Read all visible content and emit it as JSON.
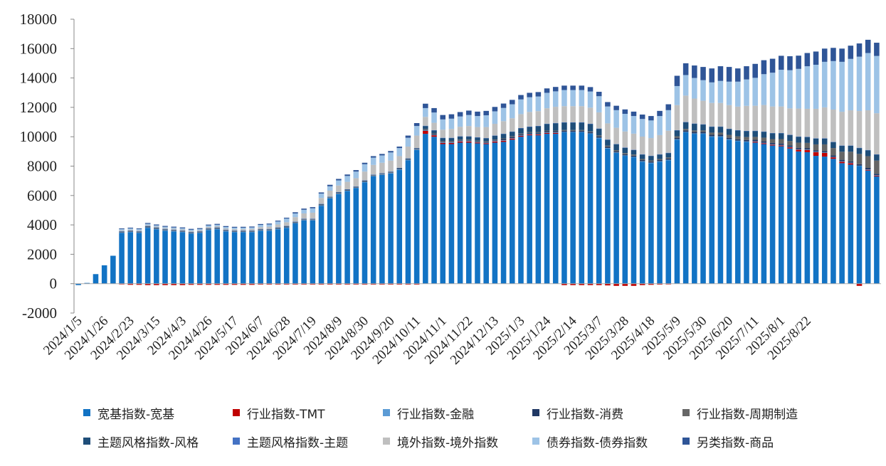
{
  "chart_data": {
    "type": "bar",
    "stacked": true,
    "ylim": [
      -2000,
      18000
    ],
    "yticks": [
      -2000,
      0,
      2000,
      4000,
      6000,
      8000,
      10000,
      12000,
      14000,
      16000,
      18000
    ],
    "x_tick_labels": [
      "2024/1/5",
      "2024/1/26",
      "2024/2/23",
      "2024/3/15",
      "2024/4/3",
      "2024/4/26",
      "2024/5/17",
      "2024/6/7",
      "2024/6/28",
      "2024/7/19",
      "2024/8/9",
      "2024/8/30",
      "2024/9/20",
      "2024/10/11",
      "2024/11/1",
      "2024/11/22",
      "2024/12/13",
      "2025/1/3",
      "2025/1/24",
      "2025/2/14",
      "2025/3/7",
      "2025/3/28",
      "2025/4/18",
      "2025/5/9",
      "2025/5/30",
      "2025/6/20",
      "2025/7/11",
      "2025/8/1",
      "2025/8/22"
    ],
    "x_tick_every": 3,
    "grid": false,
    "legend_position": "bottom",
    "series": [
      {
        "name": "宽基指数-宽基",
        "color": "#1273c4",
        "values": [
          -100,
          50,
          650,
          1250,
          1900,
          3450,
          3500,
          3450,
          3800,
          3700,
          3600,
          3550,
          3500,
          3400,
          3450,
          3650,
          3700,
          3550,
          3500,
          3500,
          3500,
          3600,
          3600,
          3700,
          3800,
          4100,
          4300,
          4300,
          5300,
          5800,
          6100,
          6300,
          6500,
          6900,
          7300,
          7400,
          7500,
          7750,
          8400,
          9100,
          10200,
          10000,
          9500,
          9500,
          9600,
          9600,
          9550,
          9500,
          9600,
          9650,
          9800,
          10000,
          10100,
          10100,
          10200,
          10200,
          10300,
          10300,
          10300,
          10200,
          9900,
          9200,
          8900,
          8700,
          8600,
          8300,
          8200,
          8300,
          8400,
          9800,
          10300,
          10200,
          10200,
          10000,
          10000,
          9800,
          9700,
          9650,
          9600,
          9500,
          9400,
          9350,
          9200,
          9000,
          8950,
          8700,
          8650,
          8500,
          8200,
          8100,
          8000,
          7700,
          7300
        ]
      },
      {
        "name": "行业指数-TMT",
        "color": "#c00000",
        "values": [
          0,
          0,
          0,
          0,
          0,
          -50,
          -80,
          -80,
          -100,
          -100,
          -100,
          -100,
          -100,
          -80,
          -80,
          -80,
          -80,
          -80,
          -80,
          -80,
          -80,
          -60,
          -60,
          -60,
          -60,
          -60,
          -60,
          -60,
          -60,
          -60,
          -60,
          -60,
          -60,
          -60,
          -60,
          -60,
          -60,
          -60,
          -60,
          -60,
          200,
          100,
          80,
          80,
          80,
          80,
          60,
          60,
          80,
          80,
          80,
          60,
          60,
          60,
          60,
          60,
          -100,
          -100,
          -100,
          -100,
          -100,
          -120,
          -150,
          -150,
          -150,
          -100,
          -80,
          -60,
          -50,
          0,
          0,
          0,
          0,
          0,
          0,
          0,
          0,
          0,
          60,
          60,
          60,
          60,
          80,
          120,
          150,
          250,
          250,
          100,
          100,
          100,
          -150,
          50,
          50
        ]
      },
      {
        "name": "行业指数-金融",
        "color": "#5b9bd5",
        "values": [
          0,
          0,
          0,
          0,
          0,
          30,
          30,
          30,
          30,
          30,
          30,
          30,
          30,
          30,
          30,
          30,
          30,
          30,
          30,
          30,
          30,
          30,
          30,
          30,
          30,
          30,
          30,
          30,
          30,
          30,
          30,
          30,
          30,
          30,
          30,
          30,
          30,
          30,
          30,
          30,
          30,
          30,
          30,
          30,
          30,
          30,
          30,
          30,
          30,
          30,
          30,
          30,
          30,
          30,
          30,
          30,
          30,
          30,
          30,
          30,
          30,
          30,
          30,
          30,
          30,
          30,
          30,
          30,
          30,
          30,
          30,
          30,
          30,
          30,
          30,
          30,
          30,
          30,
          30,
          30,
          30,
          30,
          30,
          30,
          30,
          30,
          30,
          30,
          30,
          30,
          30,
          30,
          30
        ]
      },
      {
        "name": "行业指数-消费",
        "color": "#203864",
        "values": [
          0,
          0,
          0,
          0,
          0,
          30,
          30,
          30,
          30,
          30,
          30,
          30,
          30,
          30,
          30,
          30,
          30,
          30,
          30,
          30,
          30,
          30,
          30,
          30,
          30,
          30,
          30,
          30,
          30,
          30,
          30,
          30,
          30,
          30,
          30,
          30,
          30,
          30,
          30,
          30,
          50,
          50,
          50,
          50,
          50,
          50,
          50,
          50,
          50,
          80,
          80,
          80,
          80,
          80,
          80,
          80,
          80,
          80,
          80,
          80,
          80,
          80,
          80,
          80,
          80,
          80,
          80,
          80,
          80,
          100,
          100,
          100,
          100,
          100,
          100,
          100,
          100,
          100,
          100,
          100,
          100,
          100,
          100,
          100,
          100,
          100,
          100,
          100,
          100,
          100,
          100,
          100,
          100
        ]
      },
      {
        "name": "行业指数-周期制造",
        "color": "#666666",
        "values": [
          0,
          0,
          0,
          0,
          0,
          20,
          20,
          20,
          20,
          20,
          20,
          20,
          20,
          20,
          20,
          20,
          20,
          20,
          20,
          20,
          20,
          20,
          20,
          20,
          20,
          20,
          20,
          20,
          20,
          20,
          20,
          20,
          20,
          20,
          20,
          20,
          20,
          20,
          20,
          20,
          50,
          50,
          50,
          50,
          50,
          50,
          50,
          50,
          50,
          50,
          50,
          50,
          50,
          50,
          50,
          50,
          50,
          50,
          50,
          50,
          80,
          80,
          80,
          80,
          80,
          80,
          80,
          80,
          80,
          100,
          100,
          100,
          100,
          150,
          150,
          200,
          200,
          200,
          200,
          250,
          250,
          300,
          300,
          350,
          350,
          400,
          450,
          500,
          550,
          650,
          700,
          800,
          900
        ]
      },
      {
        "name": "主题风格指数-风格",
        "color": "#1f4e79",
        "values": [
          0,
          0,
          0,
          0,
          0,
          30,
          30,
          30,
          30,
          30,
          30,
          30,
          30,
          30,
          30,
          30,
          30,
          30,
          30,
          30,
          30,
          30,
          30,
          30,
          30,
          30,
          30,
          30,
          30,
          30,
          30,
          30,
          30,
          30,
          30,
          30,
          30,
          30,
          30,
          30,
          200,
          200,
          200,
          200,
          200,
          200,
          200,
          200,
          250,
          300,
          300,
          350,
          350,
          400,
          450,
          500,
          500,
          500,
          500,
          500,
          450,
          400,
          400,
          350,
          300,
          300,
          300,
          300,
          300,
          400,
          450,
          450,
          400,
          400,
          400,
          400,
          400,
          400,
          400,
          400,
          400,
          400,
          400,
          400,
          400,
          400,
          400,
          400,
          400,
          400,
          400,
          400,
          400
        ]
      },
      {
        "name": "主题风格指数-主题",
        "color": "#4472c4",
        "values": [
          0,
          0,
          0,
          0,
          0,
          20,
          20,
          20,
          20,
          20,
          20,
          20,
          20,
          20,
          20,
          20,
          20,
          20,
          20,
          20,
          20,
          20,
          20,
          20,
          20,
          20,
          20,
          20,
          20,
          20,
          20,
          20,
          20,
          20,
          20,
          20,
          20,
          20,
          20,
          20,
          20,
          20,
          20,
          20,
          20,
          20,
          20,
          20,
          20,
          20,
          20,
          20,
          20,
          20,
          20,
          20,
          20,
          20,
          20,
          20,
          20,
          20,
          20,
          20,
          20,
          20,
          20,
          20,
          20,
          20,
          20,
          20,
          20,
          20,
          20,
          20,
          20,
          20,
          20,
          20,
          20,
          20,
          20,
          20,
          20,
          20,
          20,
          20,
          20,
          20,
          20,
          20,
          20
        ]
      },
      {
        "name": "境外指数-境外指数",
        "color": "#bfbfbf",
        "values": [
          0,
          0,
          0,
          0,
          0,
          50,
          50,
          50,
          60,
          60,
          60,
          60,
          60,
          60,
          60,
          80,
          80,
          80,
          80,
          80,
          100,
          120,
          150,
          200,
          250,
          300,
          350,
          400,
          400,
          400,
          450,
          500,
          550,
          600,
          650,
          700,
          750,
          800,
          800,
          850,
          600,
          500,
          550,
          600,
          650,
          700,
          700,
          750,
          800,
          850,
          900,
          950,
          1000,
          1000,
          1050,
          1100,
          1100,
          1100,
          1100,
          1100,
          1100,
          1100,
          1100,
          1100,
          1100,
          1200,
          1200,
          1300,
          1500,
          1700,
          1800,
          1700,
          1600,
          1600,
          1600,
          1600,
          1600,
          1700,
          1700,
          1800,
          1800,
          1800,
          1800,
          1900,
          1900,
          2000,
          2100,
          2200,
          2300,
          2400,
          2500,
          2700,
          2800
        ]
      },
      {
        "name": "债券指数-债券指数",
        "color": "#9dc3e6",
        "values": [
          0,
          0,
          0,
          0,
          0,
          80,
          80,
          80,
          80,
          80,
          80,
          80,
          80,
          80,
          80,
          100,
          100,
          100,
          100,
          100,
          100,
          150,
          150,
          200,
          250,
          250,
          250,
          300,
          300,
          300,
          350,
          400,
          450,
          500,
          500,
          500,
          550,
          550,
          600,
          650,
          600,
          700,
          700,
          700,
          700,
          750,
          750,
          800,
          850,
          900,
          950,
          1000,
          1000,
          1000,
          1050,
          1050,
          1100,
          1100,
          1100,
          1100,
          1100,
          1150,
          1200,
          1200,
          1200,
          1200,
          1200,
          1300,
          1400,
          1300,
          1400,
          1400,
          1400,
          1400,
          1500,
          1600,
          1700,
          1800,
          1900,
          2100,
          2300,
          2500,
          2600,
          2700,
          2900,
          3000,
          3100,
          3300,
          3400,
          3500,
          3700,
          3900,
          3900
        ]
      },
      {
        "name": "另类指数-商品",
        "color": "#2f5597",
        "values": [
          0,
          0,
          0,
          0,
          0,
          50,
          50,
          50,
          60,
          60,
          60,
          60,
          60,
          60,
          60,
          60,
          60,
          60,
          60,
          60,
          60,
          60,
          60,
          60,
          60,
          80,
          80,
          80,
          80,
          100,
          100,
          100,
          100,
          100,
          100,
          100,
          100,
          100,
          150,
          200,
          300,
          300,
          300,
          300,
          300,
          300,
          300,
          300,
          300,
          300,
          300,
          300,
          300,
          300,
          300,
          300,
          300,
          300,
          300,
          300,
          300,
          300,
          300,
          300,
          300,
          300,
          300,
          350,
          400,
          700,
          800,
          850,
          900,
          950,
          1000,
          1000,
          900,
          900,
          950,
          950,
          950,
          950,
          950,
          900,
          900,
          900,
          900,
          900,
          900,
          900,
          900,
          900,
          900
        ]
      }
    ]
  }
}
